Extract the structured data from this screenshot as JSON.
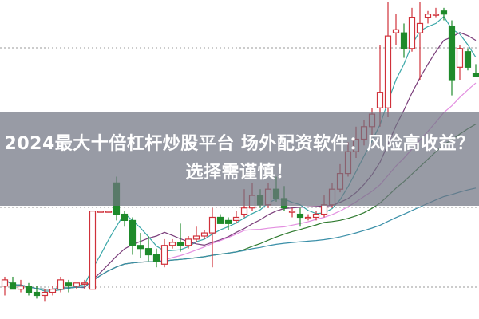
{
  "headline": "2024最大十倍杠杆炒股平台 场外配资软件：风险高收益？选择需谨慎！",
  "chart_data": {
    "type": "candlestick",
    "title": "",
    "grid": "horizontal dotted",
    "colors": {
      "up": "#d0313a",
      "down": "#1e8a2a",
      "ma5": "#3aa7a8",
      "ma10": "#7a3d7a",
      "ma20": "#e38fe0",
      "ma30": "#2f7a2f",
      "ma60": "#3a8fa8"
    },
    "moving_averages": [
      5,
      10,
      20,
      30,
      60
    ],
    "ylim": [
      0,
      100
    ],
    "candles": [
      [
        9,
        12,
        6,
        11
      ],
      [
        10,
        12,
        8,
        8
      ],
      [
        8,
        11,
        7,
        9
      ],
      [
        9,
        10,
        6,
        7
      ],
      [
        7,
        9,
        5,
        6
      ],
      [
        6,
        8,
        4,
        7
      ],
      [
        7,
        9,
        6,
        8
      ],
      [
        8,
        12,
        7,
        11
      ],
      [
        10,
        11,
        7,
        9
      ],
      [
        9,
        10,
        8,
        10
      ],
      [
        10,
        11,
        8,
        10
      ],
      [
        8,
        33,
        8,
        33
      ],
      [
        33,
        33,
        33,
        33
      ],
      [
        33,
        33,
        33,
        33
      ],
      [
        42,
        44,
        30,
        32
      ],
      [
        32,
        33,
        28,
        30
      ],
      [
        30,
        31,
        19,
        22
      ],
      [
        22,
        26,
        18,
        21
      ],
      [
        21,
        25,
        17,
        19
      ],
      [
        19,
        21,
        15,
        17
      ],
      [
        16,
        24,
        15,
        22
      ],
      [
        22,
        24,
        21,
        23
      ],
      [
        23,
        29,
        20,
        22
      ],
      [
        22,
        25,
        21,
        24
      ],
      [
        24,
        28,
        23,
        25
      ],
      [
        25,
        27,
        24,
        26
      ],
      [
        26,
        34,
        15,
        31
      ],
      [
        31,
        32,
        29,
        29
      ],
      [
        30,
        31,
        27,
        29
      ],
      [
        30,
        33,
        29,
        31
      ],
      [
        32,
        40,
        31,
        34
      ],
      [
        34,
        42,
        33,
        38
      ],
      [
        38,
        40,
        34,
        35
      ],
      [
        35,
        42,
        34,
        40
      ],
      [
        40,
        44,
        36,
        37
      ],
      [
        37,
        41,
        33,
        34
      ],
      [
        33,
        34,
        31,
        33
      ],
      [
        32,
        34,
        28,
        31
      ],
      [
        31,
        32,
        30,
        31
      ],
      [
        31,
        33,
        30,
        32
      ],
      [
        32,
        38,
        31,
        35
      ],
      [
        35,
        42,
        34,
        40
      ],
      [
        40,
        48,
        39,
        45
      ],
      [
        45,
        55,
        44,
        52
      ],
      [
        52,
        60,
        50,
        56
      ],
      [
        56,
        62,
        54,
        60
      ],
      [
        60,
        66,
        57,
        64
      ],
      [
        66,
        86,
        60,
        71
      ],
      [
        66,
        100,
        63,
        89
      ],
      [
        90,
        96,
        86,
        91
      ],
      [
        90,
        93,
        82,
        85
      ],
      [
        85,
        98,
        84,
        95
      ],
      [
        90,
        100,
        75,
        93
      ],
      [
        95,
        97,
        93,
        96
      ],
      [
        96,
        98,
        95,
        96
      ],
      [
        97,
        98,
        94,
        96
      ],
      [
        92,
        94,
        70,
        75
      ],
      [
        79,
        86,
        75,
        85
      ],
      [
        84,
        85,
        78,
        79
      ],
      [
        77,
        80,
        76,
        76
      ]
    ]
  }
}
